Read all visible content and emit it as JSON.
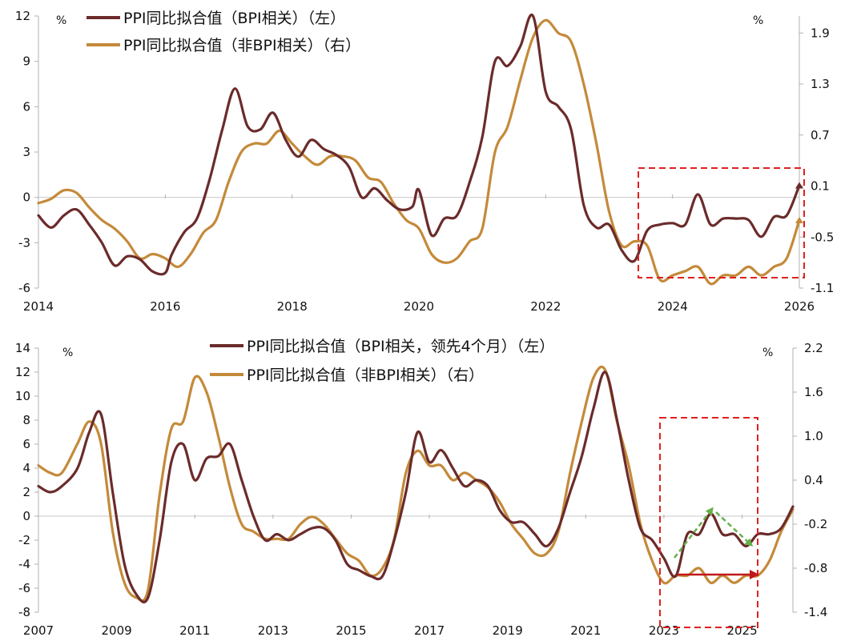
{
  "chart_data": [
    {
      "type": "line",
      "unit_left": "%",
      "unit_right": "%",
      "x_range": [
        2014.0,
        2026.0
      ],
      "x_ticks": [
        "2014",
        "2016",
        "2018",
        "2020",
        "2022",
        "2024",
        "2026"
      ],
      "y_left_range": [
        -6,
        12
      ],
      "y_left_ticks": [
        "-6",
        "-3",
        "0",
        "3",
        "6",
        "9",
        "12"
      ],
      "y_right_range": [
        -1.1,
        2.1
      ],
      "y_right_ticks": [
        "-1.1",
        "-0.5",
        "0.1",
        "0.7",
        "1.3",
        "1.9"
      ],
      "legend_position": "top-left",
      "series": [
        {
          "name": "PPI同比拟合值（BPI相关）（左）",
          "axis": "left",
          "color": "#6B2B2B",
          "points": [
            [
              2014.0,
              -1.2
            ],
            [
              2014.2,
              -2.0
            ],
            [
              2014.4,
              -1.2
            ],
            [
              2014.6,
              -0.8
            ],
            [
              2014.8,
              -1.8
            ],
            [
              2015.0,
              -3.0
            ],
            [
              2015.2,
              -4.5
            ],
            [
              2015.4,
              -3.9
            ],
            [
              2015.6,
              -4.1
            ],
            [
              2015.8,
              -4.9
            ],
            [
              2016.0,
              -5.0
            ],
            [
              2016.1,
              -3.8
            ],
            [
              2016.3,
              -2.3
            ],
            [
              2016.5,
              -1.4
            ],
            [
              2016.7,
              1.2
            ],
            [
              2016.9,
              4.5
            ],
            [
              2017.1,
              7.2
            ],
            [
              2017.3,
              4.7
            ],
            [
              2017.5,
              4.5
            ],
            [
              2017.7,
              5.6
            ],
            [
              2017.9,
              3.8
            ],
            [
              2018.1,
              2.7
            ],
            [
              2018.3,
              3.8
            ],
            [
              2018.5,
              3.2
            ],
            [
              2018.7,
              2.8
            ],
            [
              2018.9,
              2.0
            ],
            [
              2019.1,
              0.0
            ],
            [
              2019.3,
              0.6
            ],
            [
              2019.5,
              -0.2
            ],
            [
              2019.7,
              -0.8
            ],
            [
              2019.9,
              -0.6
            ],
            [
              2020.0,
              0.5
            ],
            [
              2020.2,
              -2.5
            ],
            [
              2020.4,
              -1.4
            ],
            [
              2020.6,
              -1.2
            ],
            [
              2020.8,
              1.0
            ],
            [
              2021.0,
              4.0
            ],
            [
              2021.2,
              9.0
            ],
            [
              2021.4,
              8.7
            ],
            [
              2021.6,
              10.0
            ],
            [
              2021.8,
              12.0
            ],
            [
              2022.0,
              7.0
            ],
            [
              2022.2,
              6.0
            ],
            [
              2022.4,
              4.5
            ],
            [
              2022.6,
              -0.5
            ],
            [
              2022.8,
              -2.0
            ],
            [
              2023.0,
              -1.8
            ],
            [
              2023.2,
              -3.5
            ],
            [
              2023.4,
              -4.2
            ],
            [
              2023.6,
              -2.2
            ],
            [
              2023.8,
              -1.8
            ],
            [
              2024.0,
              -1.7
            ],
            [
              2024.2,
              -1.8
            ],
            [
              2024.4,
              0.2
            ],
            [
              2024.6,
              -1.8
            ],
            [
              2024.8,
              -1.4
            ],
            [
              2025.0,
              -1.4
            ],
            [
              2025.2,
              -1.5
            ],
            [
              2025.4,
              -2.6
            ],
            [
              2025.6,
              -1.3
            ],
            [
              2025.8,
              -1.2
            ],
            [
              2026.0,
              0.8
            ]
          ]
        },
        {
          "name": "PPI同比拟合值（非BPI相关）（右）",
          "axis": "right",
          "color": "#C48A3A",
          "points": [
            [
              2014.0,
              -0.1
            ],
            [
              2014.2,
              -0.05
            ],
            [
              2014.4,
              0.05
            ],
            [
              2014.6,
              0.02
            ],
            [
              2014.8,
              -0.15
            ],
            [
              2015.0,
              -0.3
            ],
            [
              2015.2,
              -0.4
            ],
            [
              2015.4,
              -0.55
            ],
            [
              2015.6,
              -0.75
            ],
            [
              2015.8,
              -0.7
            ],
            [
              2016.0,
              -0.75
            ],
            [
              2016.2,
              -0.85
            ],
            [
              2016.4,
              -0.7
            ],
            [
              2016.6,
              -0.45
            ],
            [
              2016.8,
              -0.3
            ],
            [
              2017.0,
              0.15
            ],
            [
              2017.2,
              0.5
            ],
            [
              2017.4,
              0.6
            ],
            [
              2017.6,
              0.6
            ],
            [
              2017.8,
              0.75
            ],
            [
              2018.0,
              0.6
            ],
            [
              2018.2,
              0.45
            ],
            [
              2018.4,
              0.35
            ],
            [
              2018.6,
              0.45
            ],
            [
              2018.8,
              0.45
            ],
            [
              2019.0,
              0.4
            ],
            [
              2019.2,
              0.2
            ],
            [
              2019.4,
              0.15
            ],
            [
              2019.6,
              -0.1
            ],
            [
              2019.8,
              -0.3
            ],
            [
              2020.0,
              -0.4
            ],
            [
              2020.2,
              -0.7
            ],
            [
              2020.4,
              -0.8
            ],
            [
              2020.6,
              -0.75
            ],
            [
              2020.8,
              -0.55
            ],
            [
              2021.0,
              -0.4
            ],
            [
              2021.2,
              0.5
            ],
            [
              2021.4,
              0.8
            ],
            [
              2021.6,
              1.35
            ],
            [
              2021.8,
              1.85
            ],
            [
              2022.0,
              2.05
            ],
            [
              2022.2,
              1.9
            ],
            [
              2022.4,
              1.8
            ],
            [
              2022.6,
              1.3
            ],
            [
              2022.8,
              0.6
            ],
            [
              2023.0,
              -0.2
            ],
            [
              2023.2,
              -0.6
            ],
            [
              2023.4,
              -0.55
            ],
            [
              2023.6,
              -0.6
            ],
            [
              2023.8,
              -1.0
            ],
            [
              2024.0,
              -0.95
            ],
            [
              2024.2,
              -0.9
            ],
            [
              2024.4,
              -0.85
            ],
            [
              2024.6,
              -1.05
            ],
            [
              2024.8,
              -0.95
            ],
            [
              2025.0,
              -0.95
            ],
            [
              2025.2,
              -0.85
            ],
            [
              2025.4,
              -0.95
            ],
            [
              2025.6,
              -0.85
            ],
            [
              2025.8,
              -0.75
            ],
            [
              2026.0,
              -0.3
            ]
          ]
        }
      ]
    },
    {
      "type": "line",
      "unit_left": "%",
      "unit_right": "%",
      "x_range": [
        2007.0,
        2026.3
      ],
      "x_ticks": [
        "2007",
        "2009",
        "2011",
        "2013",
        "2015",
        "2017",
        "2019",
        "2021",
        "2023",
        "2025"
      ],
      "y_left_range": [
        -8,
        14
      ],
      "y_left_ticks": [
        "-8",
        "-6",
        "-4",
        "-2",
        "0",
        "2",
        "4",
        "6",
        "8",
        "10",
        "12",
        "14"
      ],
      "y_right_range": [
        -1.4,
        2.2
      ],
      "y_right_ticks": [
        "-1.4",
        "-0.8",
        "-0.2",
        "0.4",
        "1.0",
        "1.6",
        "2.2"
      ],
      "legend_position": "top-center",
      "series": [
        {
          "name": "PPI同比拟合值（BPI相关，领先4个月）（左）",
          "axis": "left",
          "color": "#6B2B2B",
          "points": [
            [
              2007.0,
              2.5
            ],
            [
              2007.3,
              2.0
            ],
            [
              2007.6,
              2.5
            ],
            [
              2008.0,
              4.0
            ],
            [
              2008.3,
              7.0
            ],
            [
              2008.6,
              8.5
            ],
            [
              2008.9,
              2.0
            ],
            [
              2009.2,
              -4.0
            ],
            [
              2009.5,
              -6.5
            ],
            [
              2009.8,
              -6.8
            ],
            [
              2010.1,
              -2.0
            ],
            [
              2010.4,
              4.5
            ],
            [
              2010.7,
              6.0
            ],
            [
              2011.0,
              3.0
            ],
            [
              2011.3,
              4.8
            ],
            [
              2011.6,
              5.0
            ],
            [
              2011.9,
              6.0
            ],
            [
              2012.2,
              3.0
            ],
            [
              2012.5,
              0.0
            ],
            [
              2012.8,
              -2.0
            ],
            [
              2013.1,
              -1.5
            ],
            [
              2013.4,
              -2.0
            ],
            [
              2013.7,
              -1.5
            ],
            [
              2014.0,
              -1.0
            ],
            [
              2014.3,
              -1.0
            ],
            [
              2014.6,
              -2.0
            ],
            [
              2014.9,
              -4.0
            ],
            [
              2015.2,
              -4.5
            ],
            [
              2015.5,
              -5.0
            ],
            [
              2015.8,
              -5.0
            ],
            [
              2016.1,
              -2.0
            ],
            [
              2016.4,
              2.0
            ],
            [
              2016.7,
              7.0
            ],
            [
              2017.0,
              4.5
            ],
            [
              2017.3,
              5.5
            ],
            [
              2017.6,
              4.0
            ],
            [
              2017.9,
              2.5
            ],
            [
              2018.2,
              3.0
            ],
            [
              2018.5,
              2.5
            ],
            [
              2018.8,
              0.5
            ],
            [
              2019.1,
              -0.5
            ],
            [
              2019.4,
              -0.5
            ],
            [
              2019.7,
              -1.5
            ],
            [
              2020.0,
              -2.5
            ],
            [
              2020.3,
              -1.0
            ],
            [
              2020.6,
              2.0
            ],
            [
              2020.9,
              5.0
            ],
            [
              2021.2,
              9.0
            ],
            [
              2021.5,
              12.0
            ],
            [
              2021.8,
              8.0
            ],
            [
              2022.1,
              3.0
            ],
            [
              2022.4,
              -1.0
            ],
            [
              2022.7,
              -2.0
            ],
            [
              2023.0,
              -3.5
            ],
            [
              2023.3,
              -5.0
            ],
            [
              2023.6,
              -1.5
            ],
            [
              2023.9,
              -1.5
            ],
            [
              2024.2,
              0.2
            ],
            [
              2024.5,
              -1.5
            ],
            [
              2024.8,
              -1.5
            ],
            [
              2025.1,
              -2.5
            ],
            [
              2025.4,
              -1.5
            ],
            [
              2025.7,
              -1.5
            ],
            [
              2026.0,
              -1.0
            ],
            [
              2026.3,
              0.8
            ]
          ]
        },
        {
          "name": "PPI同比拟合值（非BPI相关）（右）",
          "axis": "right",
          "color": "#C48A3A",
          "points": [
            [
              2007.0,
              0.6
            ],
            [
              2007.3,
              0.5
            ],
            [
              2007.6,
              0.5
            ],
            [
              2008.0,
              0.9
            ],
            [
              2008.3,
              1.2
            ],
            [
              2008.6,
              0.9
            ],
            [
              2008.9,
              -0.3
            ],
            [
              2009.2,
              -1.0
            ],
            [
              2009.5,
              -1.2
            ],
            [
              2009.8,
              -1.1
            ],
            [
              2010.1,
              0.2
            ],
            [
              2010.4,
              1.1
            ],
            [
              2010.7,
              1.2
            ],
            [
              2011.0,
              1.8
            ],
            [
              2011.3,
              1.6
            ],
            [
              2011.6,
              1.0
            ],
            [
              2011.9,
              0.3
            ],
            [
              2012.2,
              -0.2
            ],
            [
              2012.5,
              -0.3
            ],
            [
              2012.8,
              -0.4
            ],
            [
              2013.1,
              -0.4
            ],
            [
              2013.4,
              -0.4
            ],
            [
              2013.7,
              -0.2
            ],
            [
              2014.0,
              -0.1
            ],
            [
              2014.3,
              -0.2
            ],
            [
              2014.6,
              -0.4
            ],
            [
              2014.9,
              -0.6
            ],
            [
              2015.2,
              -0.7
            ],
            [
              2015.5,
              -0.9
            ],
            [
              2015.8,
              -0.8
            ],
            [
              2016.1,
              -0.4
            ],
            [
              2016.4,
              0.5
            ],
            [
              2016.7,
              0.8
            ],
            [
              2017.0,
              0.6
            ],
            [
              2017.3,
              0.6
            ],
            [
              2017.6,
              0.4
            ],
            [
              2017.9,
              0.5
            ],
            [
              2018.2,
              0.4
            ],
            [
              2018.5,
              0.3
            ],
            [
              2018.8,
              0.1
            ],
            [
              2019.1,
              -0.2
            ],
            [
              2019.4,
              -0.4
            ],
            [
              2019.7,
              -0.6
            ],
            [
              2020.0,
              -0.6
            ],
            [
              2020.3,
              -0.3
            ],
            [
              2020.6,
              0.5
            ],
            [
              2020.9,
              1.2
            ],
            [
              2021.2,
              1.8
            ],
            [
              2021.5,
              1.9
            ],
            [
              2021.8,
              1.2
            ],
            [
              2022.1,
              0.6
            ],
            [
              2022.4,
              -0.2
            ],
            [
              2022.7,
              -0.7
            ],
            [
              2023.0,
              -1.0
            ],
            [
              2023.3,
              -0.9
            ],
            [
              2023.6,
              -0.9
            ],
            [
              2023.9,
              -0.8
            ],
            [
              2024.2,
              -1.0
            ],
            [
              2024.5,
              -0.9
            ],
            [
              2024.8,
              -1.0
            ],
            [
              2025.1,
              -0.9
            ],
            [
              2025.4,
              -0.9
            ],
            [
              2025.7,
              -0.7
            ],
            [
              2026.0,
              -0.3
            ],
            [
              2026.3,
              0.0
            ]
          ]
        }
      ]
    }
  ]
}
